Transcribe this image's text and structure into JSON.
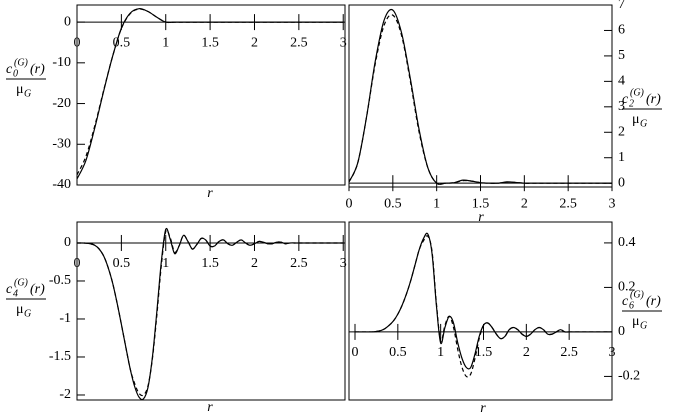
{
  "chart_data": [
    {
      "type": "line",
      "xlabel": "r",
      "ylabel": {
        "c": "c",
        "sub": "0",
        "sup": "(G)",
        "arg": "(r)",
        "den": "μ",
        "den_sub": "G"
      },
      "yaxis_side": "left",
      "xlim": [
        0,
        3.02
      ],
      "ylim": [
        -40,
        4.2
      ],
      "xticks": [
        0,
        0.5,
        1,
        1.5,
        2,
        2.5,
        3
      ],
      "yticks": [
        0,
        -10,
        -20,
        -30,
        -40
      ],
      "x": [
        0,
        0.1,
        0.2,
        0.3,
        0.4,
        0.5,
        0.6,
        0.7,
        0.8,
        0.9,
        1,
        1.1,
        1.2,
        1.3,
        1.4,
        1.5,
        1.6,
        1.7,
        1.8,
        1.9,
        2,
        2.1,
        2.2,
        2.3,
        2.4,
        2.5,
        2.6,
        2.7,
        2.8,
        2.9,
        3
      ],
      "series": [
        {
          "color": "#000000",
          "dash": "none",
          "values": [
            -38.5,
            -34,
            -26,
            -17,
            -8.5,
            -1.5,
            2.2,
            3.3,
            2.6,
            1.2,
            0,
            0,
            0,
            0,
            0,
            0,
            0,
            0,
            0,
            0,
            0,
            0,
            0,
            0,
            0,
            0,
            0,
            0,
            0,
            0,
            0
          ]
        },
        {
          "color": "#000000",
          "dash": "4,3",
          "values": [
            -37.5,
            -33,
            -25.5,
            -16.8,
            -8.5,
            -1.6,
            2.1,
            3.2,
            2.6,
            1.2,
            0,
            0,
            0,
            0,
            0,
            0,
            0,
            0,
            0,
            0,
            0,
            0,
            0,
            0,
            0,
            0,
            0,
            0,
            0,
            0,
            0
          ]
        }
      ]
    },
    {
      "type": "line",
      "xlabel": "r",
      "ylabel": {
        "c": "c",
        "sub": "2",
        "sup": "(G)",
        "arg": "(r)",
        "den": "μ",
        "den_sub": "G"
      },
      "yaxis_side": "right",
      "xlim": [
        0,
        3
      ],
      "ylim": [
        -0.15,
        7
      ],
      "xticks": [
        0,
        0.5,
        1,
        1.5,
        2,
        2.5,
        3
      ],
      "yticks": [
        0,
        1,
        2,
        3,
        4,
        5,
        6,
        7
      ],
      "x": [
        0,
        0.1,
        0.2,
        0.3,
        0.4,
        0.5,
        0.6,
        0.7,
        0.8,
        0.9,
        1,
        1.1,
        1.2,
        1.3,
        1.4,
        1.5,
        1.6,
        1.7,
        1.8,
        1.9,
        2,
        2.1,
        2.2,
        2.3,
        2.4,
        2.5,
        2.6,
        2.7,
        2.8,
        2.9,
        3
      ],
      "series": [
        {
          "color": "#000000",
          "dash": "none",
          "values": [
            0.05,
            0.8,
            2.6,
            4.8,
            6.4,
            6.8,
            5.9,
            4.1,
            2.1,
            0.6,
            0,
            0,
            0.02,
            0.12,
            0.08,
            0.02,
            0,
            0,
            0.05,
            0.03,
            0,
            0,
            0,
            0,
            0,
            0,
            0,
            0,
            0,
            0,
            0
          ]
        },
        {
          "color": "#000000",
          "dash": "4,3",
          "values": [
            0.05,
            0.8,
            2.6,
            4.7,
            6.2,
            6.6,
            5.8,
            4,
            2,
            0.6,
            0,
            0,
            0.02,
            0.1,
            0.08,
            0.02,
            0,
            0,
            0.04,
            0.03,
            0,
            0,
            0,
            0,
            0,
            0,
            0,
            0,
            0,
            0,
            0
          ]
        }
      ]
    },
    {
      "type": "line",
      "xlabel": "r",
      "ylabel": {
        "c": "c",
        "sub": "4",
        "sup": "(G)",
        "arg": "(r)",
        "den": "μ",
        "den_sub": "G"
      },
      "yaxis_side": "left",
      "xlim": [
        0,
        3.02
      ],
      "ylim": [
        -2.066,
        0.276
      ],
      "xticks": [
        0,
        0.5,
        1,
        1.5,
        2,
        2.5,
        3
      ],
      "yticks": [
        0,
        -0.5,
        -1,
        -1.5,
        -2
      ],
      "x": [
        0,
        0.05,
        0.1,
        0.15,
        0.2,
        0.25,
        0.3,
        0.35,
        0.4,
        0.45,
        0.5,
        0.55,
        0.6,
        0.65,
        0.7,
        0.75,
        0.8,
        0.85,
        0.9,
        0.95,
        1,
        1.05,
        1.1,
        1.15,
        1.2,
        1.25,
        1.3,
        1.35,
        1.4,
        1.45,
        1.5,
        1.55,
        1.6,
        1.65,
        1.7,
        1.75,
        1.8,
        1.85,
        1.9,
        1.95,
        2,
        2.05,
        2.1,
        2.15,
        2.2,
        2.25,
        2.3,
        2.35,
        2.4,
        2.45,
        2.5,
        2.55,
        2.6,
        2.65,
        2.7,
        2.75,
        2.8,
        2.85,
        2.9,
        2.95,
        3
      ],
      "series": [
        {
          "color": "#000000",
          "dash": "none",
          "values": [
            0,
            0,
            -0.002,
            -0.01,
            -0.03,
            -0.08,
            -0.17,
            -0.32,
            -0.52,
            -0.78,
            -1.07,
            -1.37,
            -1.66,
            -1.89,
            -2.03,
            -2.05,
            -1.9,
            -1.5,
            -0.9,
            -0.25,
            0.18,
            0.05,
            -0.14,
            -0.04,
            0.1,
            0.02,
            -0.08,
            -0.02,
            0.06,
            0.04,
            -0.04,
            -0.04,
            0.02,
            0.04,
            -0.01,
            -0.03,
            0.01,
            0.04,
            0,
            -0.03,
            -0.01,
            0.02,
            0.01,
            -0.01,
            -0.01,
            0.01,
            0.01,
            -0.01,
            0,
            0,
            0,
            0,
            0,
            0,
            0,
            0,
            0,
            0,
            0,
            0,
            0
          ]
        },
        {
          "color": "#000000",
          "dash": "4,3",
          "values": [
            0,
            0,
            -0.002,
            -0.01,
            -0.03,
            -0.08,
            -0.17,
            -0.32,
            -0.52,
            -0.78,
            -1.07,
            -1.37,
            -1.66,
            -1.85,
            -1.98,
            -2,
            -1.88,
            -1.52,
            -0.95,
            -0.3,
            0.15,
            0.07,
            -0.12,
            -0.04,
            0.1,
            0.02,
            -0.08,
            -0.02,
            0.06,
            0.04,
            -0.04,
            -0.04,
            0.02,
            0.04,
            -0.01,
            -0.03,
            0.01,
            0.04,
            0,
            -0.03,
            -0.01,
            0.02,
            0.01,
            -0.01,
            -0.01,
            0.01,
            0.01,
            -0.01,
            0,
            0,
            0,
            0,
            0,
            0,
            0,
            0,
            0,
            0,
            0,
            0,
            0
          ]
        }
      ]
    },
    {
      "type": "line",
      "xlabel": "r",
      "ylabel": {
        "c": "c",
        "sub": "6",
        "sup": "(G)",
        "arg": "(r)",
        "den": "μ",
        "den_sub": "G"
      },
      "yaxis_side": "right",
      "xlim": [
        -0.07,
        3
      ],
      "ylim": [
        -0.306,
        0.494
      ],
      "xticks": [
        0,
        0.5,
        1,
        1.5,
        2,
        2.5,
        3
      ],
      "yticks": [
        0.4,
        0.2,
        0,
        -0.2
      ],
      "x": [
        0,
        0.05,
        0.1,
        0.15,
        0.2,
        0.25,
        0.3,
        0.35,
        0.4,
        0.45,
        0.5,
        0.55,
        0.6,
        0.65,
        0.7,
        0.75,
        0.8,
        0.85,
        0.9,
        0.95,
        1,
        1.05,
        1.1,
        1.15,
        1.2,
        1.25,
        1.3,
        1.35,
        1.4,
        1.45,
        1.5,
        1.55,
        1.6,
        1.65,
        1.7,
        1.75,
        1.8,
        1.85,
        1.9,
        1.95,
        2,
        2.05,
        2.1,
        2.15,
        2.2,
        2.25,
        2.3,
        2.35,
        2.4,
        2.45,
        2.5,
        2.55,
        2.6,
        2.65,
        2.7,
        2.75,
        2.8,
        2.85,
        2.9,
        2.95,
        3
      ],
      "series": [
        {
          "color": "#000000",
          "dash": "none",
          "values": [
            0,
            0,
            0,
            0,
            0,
            0.002,
            0.006,
            0.015,
            0.03,
            0.05,
            0.08,
            0.12,
            0.17,
            0.23,
            0.3,
            0.37,
            0.42,
            0.44,
            0.35,
            0.12,
            -0.05,
            0.02,
            0.07,
            0.04,
            -0.05,
            -0.12,
            -0.16,
            -0.16,
            -0.1,
            -0.02,
            0.03,
            0.04,
            0.02,
            -0.01,
            -0.03,
            -0.02,
            0.01,
            0.02,
            0.01,
            -0.01,
            -0.02,
            -0.01,
            0.01,
            0.02,
            0.01,
            -0.01,
            -0.01,
            0,
            0.01,
            0,
            0,
            0,
            0,
            0,
            0,
            0,
            0,
            0,
            0,
            0,
            0
          ]
        },
        {
          "color": "#000000",
          "dash": "4,3",
          "values": [
            0,
            0,
            0,
            0,
            0,
            0.002,
            0.006,
            0.015,
            0.03,
            0.05,
            0.08,
            0.12,
            0.17,
            0.23,
            0.3,
            0.37,
            0.41,
            0.43,
            0.36,
            0.13,
            -0.04,
            0.03,
            0.07,
            0.02,
            -0.08,
            -0.16,
            -0.2,
            -0.19,
            -0.12,
            -0.03,
            0.03,
            0.04,
            0.02,
            -0.01,
            -0.03,
            -0.02,
            0.01,
            0.02,
            0.01,
            -0.01,
            -0.02,
            -0.01,
            0.01,
            0.02,
            0.01,
            -0.01,
            -0.01,
            0,
            0.01,
            0,
            0,
            0,
            0,
            0,
            0,
            0,
            0,
            0,
            0,
            0,
            0
          ]
        }
      ]
    }
  ]
}
